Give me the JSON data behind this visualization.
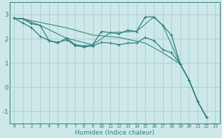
{
  "background_color": "#cce8e8",
  "grid_color": "#aacccc",
  "line_color": "#2e7d7d",
  "xlabel": "Humidex (Indice chaleur)",
  "xlim": [
    -0.5,
    23.5
  ],
  "ylim": [
    -1.5,
    3.5
  ],
  "yticks": [
    -1,
    0,
    1,
    2,
    3
  ],
  "xticks": [
    0,
    1,
    2,
    3,
    4,
    5,
    6,
    7,
    8,
    9,
    10,
    11,
    12,
    13,
    14,
    15,
    16,
    17,
    18,
    19,
    20,
    21,
    22,
    23
  ],
  "series": [
    {
      "x": [
        0,
        1,
        2,
        3,
        4,
        5,
        6,
        7,
        8,
        9,
        10,
        11,
        12,
        13,
        14,
        15,
        16,
        17,
        18,
        19,
        20,
        21,
        22
      ],
      "y": [
        2.85,
        2.82,
        2.62,
        2.55,
        1.92,
        1.82,
        2.02,
        1.75,
        1.7,
        1.75,
        2.3,
        2.25,
        2.2,
        2.35,
        2.3,
        2.9,
        2.9,
        2.55,
        2.15,
        0.95,
        0.3,
        -0.6,
        -1.25
      ],
      "marker": true,
      "linewidth": 0.9
    },
    {
      "x": [
        0,
        1,
        2,
        3,
        4,
        5,
        6,
        7,
        8,
        9,
        10,
        11,
        12,
        13,
        14,
        15,
        16,
        17,
        18,
        19,
        20,
        21,
        22
      ],
      "y": [
        2.85,
        2.65,
        2.45,
        2.1,
        1.92,
        1.85,
        1.95,
        1.72,
        1.65,
        1.7,
        1.85,
        1.82,
        1.75,
        1.82,
        1.82,
        2.05,
        1.92,
        1.55,
        1.42,
        0.95,
        0.3,
        -0.6,
        -1.25
      ],
      "marker": true,
      "linewidth": 0.9
    },
    {
      "x": [
        0,
        1,
        3,
        6,
        9,
        11,
        14,
        16,
        17,
        19,
        20,
        21,
        22
      ],
      "y": [
        2.85,
        2.82,
        2.55,
        2.02,
        1.75,
        2.25,
        2.3,
        2.9,
        2.55,
        0.95,
        0.3,
        -0.6,
        -1.25
      ],
      "marker": false,
      "linewidth": 0.75
    },
    {
      "x": [
        0,
        1,
        6,
        9,
        12,
        15,
        17,
        19,
        20,
        21,
        22
      ],
      "y": [
        2.85,
        2.82,
        2.45,
        2.15,
        2.05,
        1.82,
        1.42,
        0.95,
        0.3,
        -0.6,
        -1.25
      ],
      "marker": false,
      "linewidth": 0.75
    }
  ]
}
